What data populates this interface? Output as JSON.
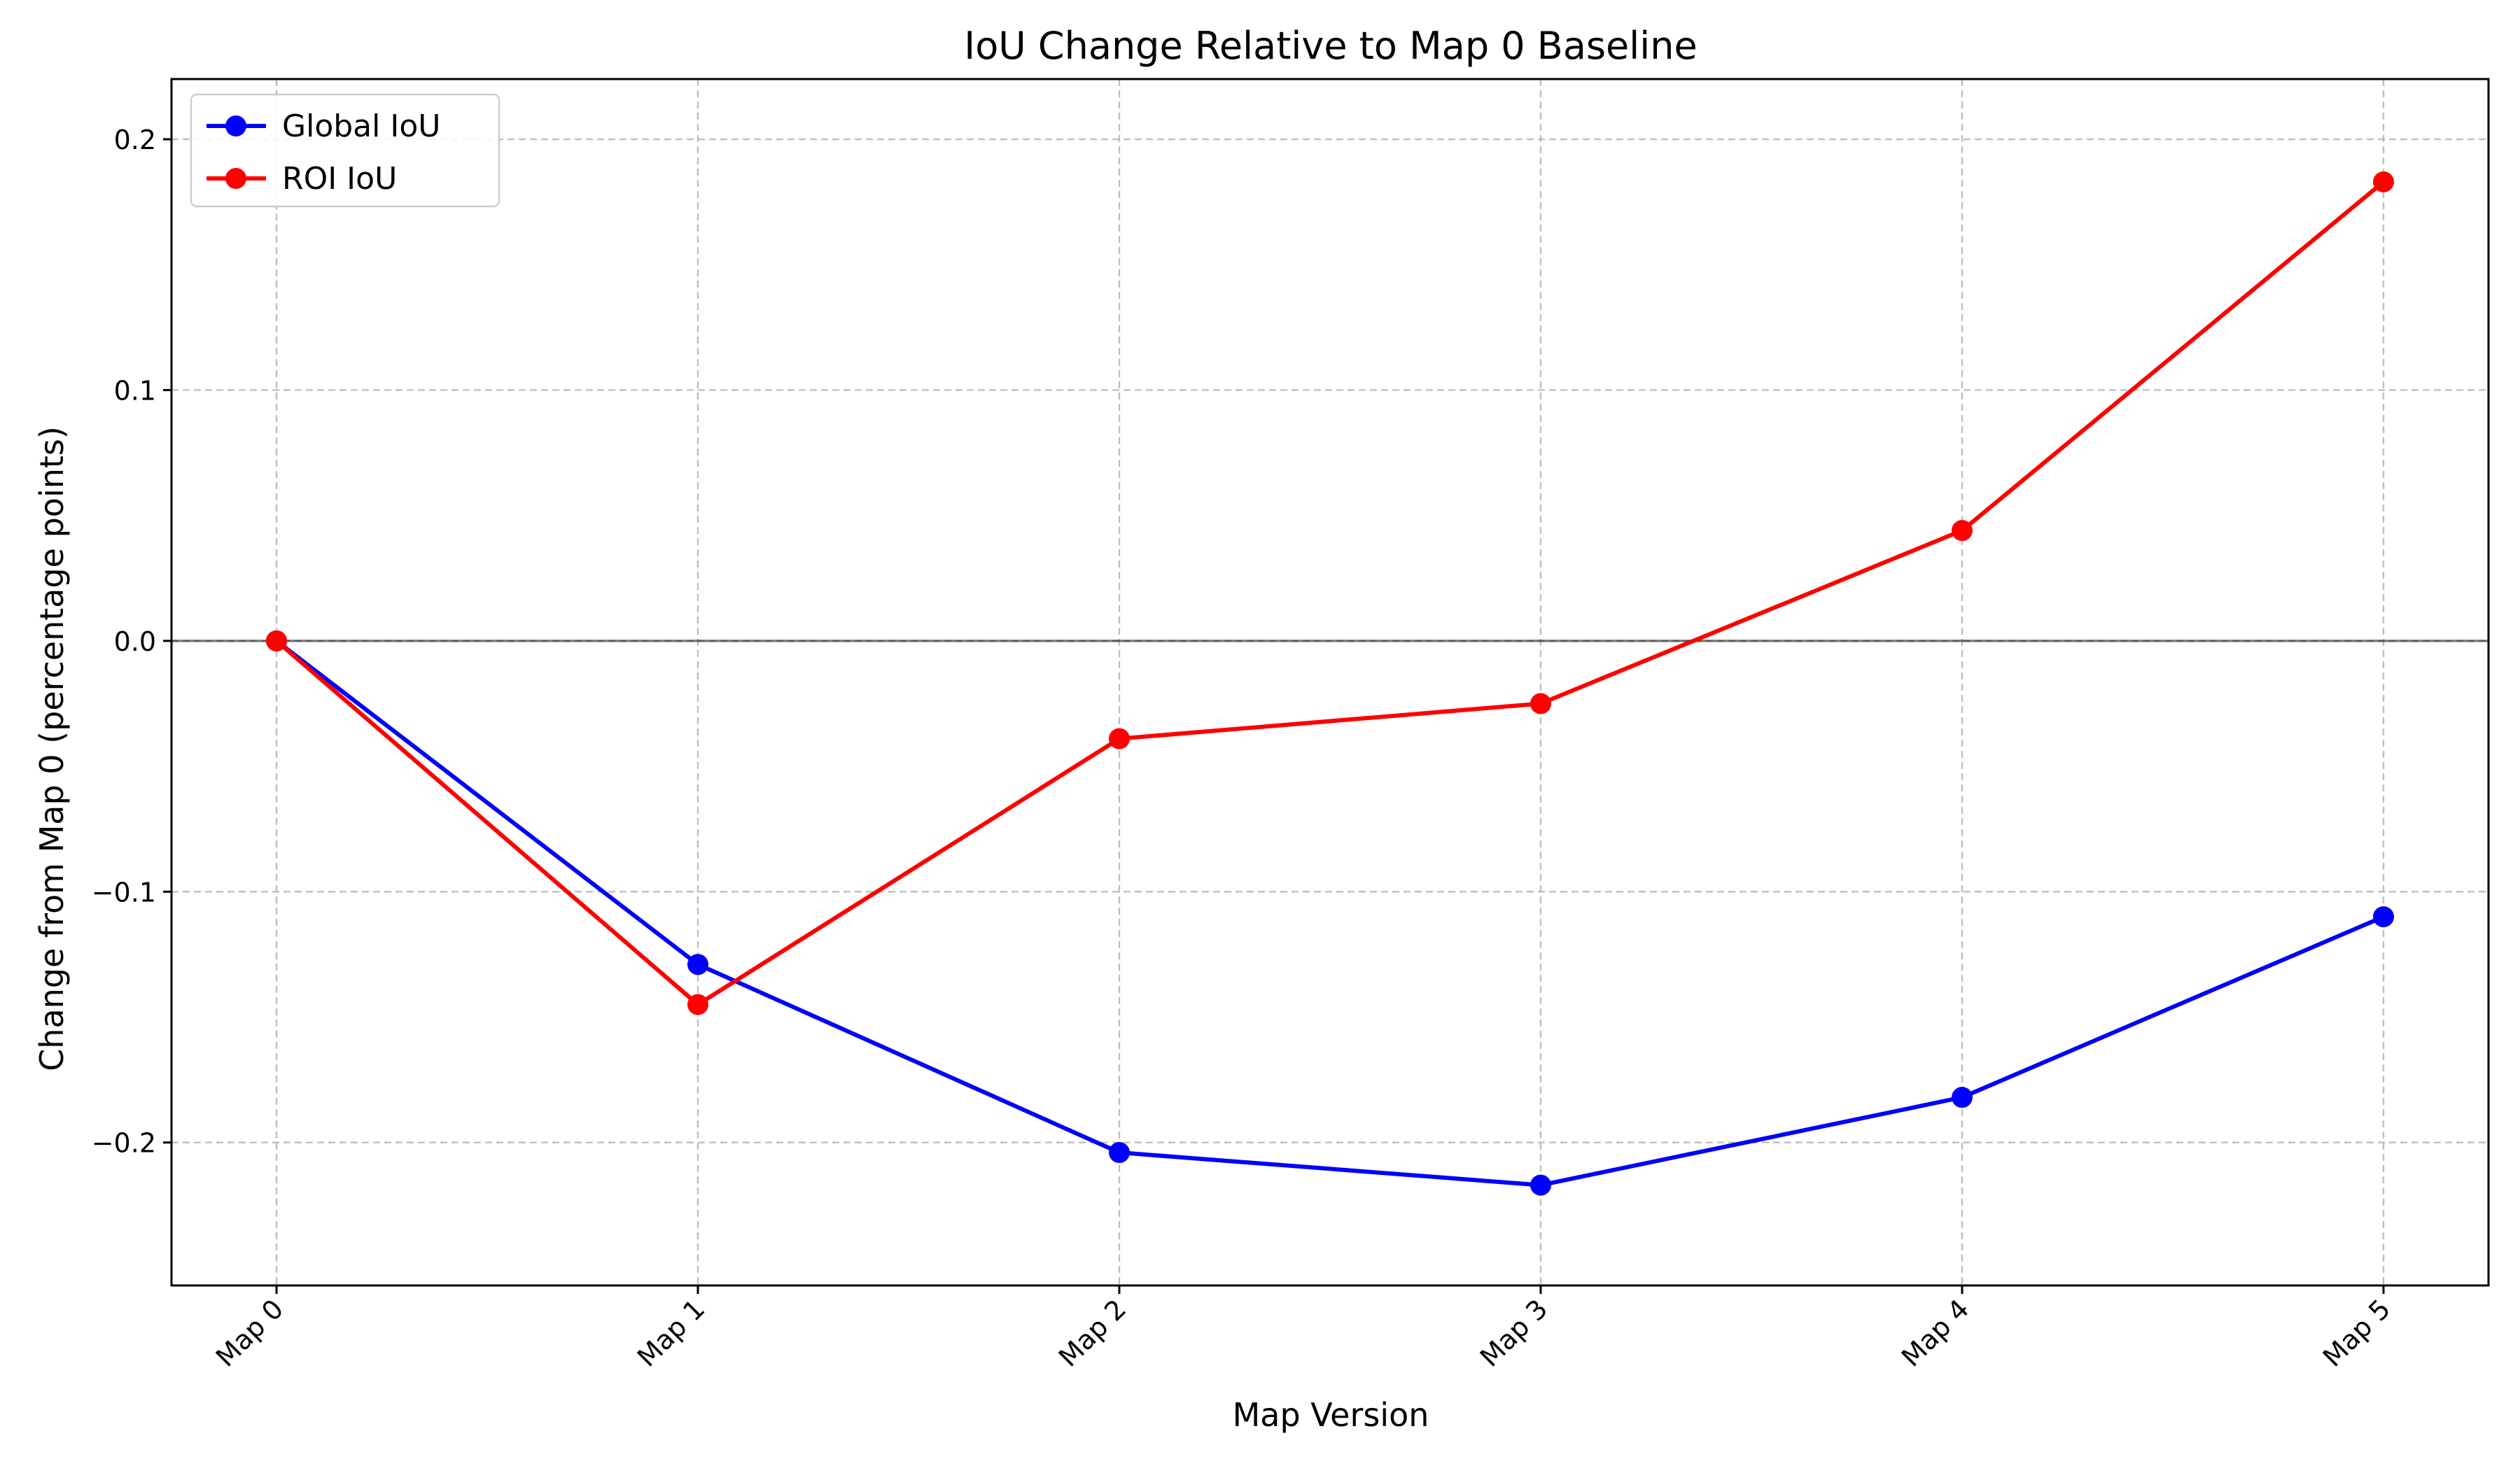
{
  "chart_data": {
    "type": "line",
    "title": "IoU Change Relative to Map 0 Baseline",
    "xlabel": "Map Version",
    "ylabel": "Change from Map 0 (percentage points)",
    "categories": [
      "Map 0",
      "Map 1",
      "Map 2",
      "Map 3",
      "Map 4",
      "Map 5"
    ],
    "ylim": [
      -0.257,
      0.224
    ],
    "yticks": [
      -0.2,
      -0.1,
      0.0,
      0.1,
      0.2
    ],
    "ytick_labels": [
      "−0.2",
      "−0.1",
      "0.0",
      "0.1",
      "0.2"
    ],
    "grid": true,
    "baseline": 0.0,
    "legend_position": "top-left",
    "series": [
      {
        "name": "Global IoU",
        "color": "#0000ff",
        "values": [
          0.0,
          -0.129,
          -0.204,
          -0.217,
          -0.182,
          -0.11
        ]
      },
      {
        "name": "ROI IoU",
        "color": "#ff0000",
        "values": [
          0.0,
          -0.145,
          -0.039,
          -0.025,
          0.044,
          0.183
        ]
      }
    ]
  }
}
